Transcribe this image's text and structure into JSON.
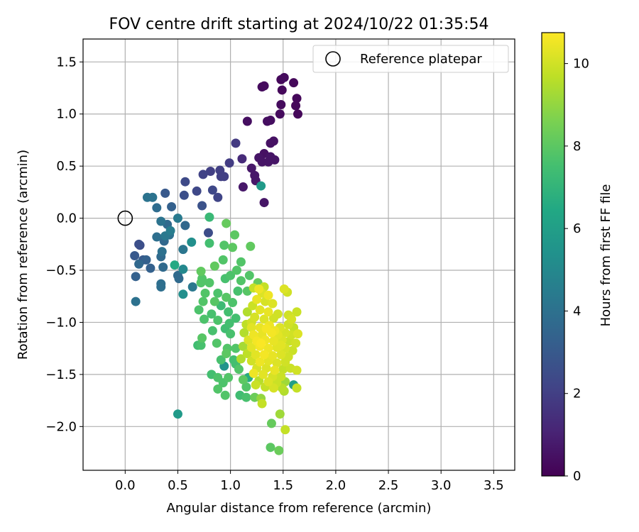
{
  "chart_data": {
    "type": "scatter",
    "title": "FOV centre drift starting at 2024/10/22 01:35:54",
    "xlabel": "Angular distance from reference (arcmin)",
    "ylabel": "Rotation from reference (arcmin)",
    "xlim": [
      -0.4,
      3.7
    ],
    "ylim": [
      -2.42,
      1.72
    ],
    "xticks": [
      0.0,
      0.5,
      1.0,
      1.5,
      2.0,
      2.5,
      3.0,
      3.5
    ],
    "xtick_labels": [
      "0.0",
      "0.5",
      "1.0",
      "1.5",
      "2.0",
      "2.5",
      "3.0",
      "3.5"
    ],
    "yticks": [
      1.5,
      1.0,
      0.5,
      0.0,
      -0.5,
      -1.0,
      -1.5,
      -2.0
    ],
    "ytick_labels": [
      "1.5",
      "1.0",
      "0.5",
      "0.0",
      "−0.5",
      "−1.0",
      "−1.5",
      "−2.0"
    ],
    "grid": true,
    "legend": {
      "position": "top-right",
      "entries": [
        "Reference platepar"
      ]
    },
    "reference_point": {
      "x": 0.0,
      "y": 0.0
    },
    "colorbar": {
      "label": "Hours from first FF file",
      "range": [
        0,
        10.75
      ],
      "ticks": [
        0,
        2,
        4,
        6,
        8,
        10
      ],
      "tick_labels": [
        "0",
        "2",
        "4",
        "6",
        "8",
        "10"
      ],
      "colormap": "viridis"
    },
    "points_description": "x, y in arcmin; c in hours",
    "points": [
      {
        "x": 1.48,
        "y": 1.33,
        "c": 0.2
      },
      {
        "x": 1.51,
        "y": 1.35,
        "c": 0.3
      },
      {
        "x": 1.6,
        "y": 1.3,
        "c": 0.2
      },
      {
        "x": 1.3,
        "y": 1.26,
        "c": 0.3
      },
      {
        "x": 1.32,
        "y": 1.27,
        "c": 0.3
      },
      {
        "x": 1.49,
        "y": 1.23,
        "c": 0.2
      },
      {
        "x": 1.63,
        "y": 1.15,
        "c": 0.2
      },
      {
        "x": 1.48,
        "y": 1.09,
        "c": 0.3
      },
      {
        "x": 1.62,
        "y": 1.08,
        "c": 0.2
      },
      {
        "x": 1.64,
        "y": 1.0,
        "c": 0.2
      },
      {
        "x": 1.47,
        "y": 1.0,
        "c": 0.3
      },
      {
        "x": 1.16,
        "y": 0.93,
        "c": 0.4
      },
      {
        "x": 1.35,
        "y": 0.93,
        "c": 0.4
      },
      {
        "x": 1.38,
        "y": 0.94,
        "c": 0.4
      },
      {
        "x": 1.41,
        "y": 0.74,
        "c": 0.5
      },
      {
        "x": 1.38,
        "y": 0.72,
        "c": 0.5
      },
      {
        "x": 1.32,
        "y": 0.62,
        "c": 0.5
      },
      {
        "x": 1.38,
        "y": 0.59,
        "c": 0.6
      },
      {
        "x": 1.27,
        "y": 0.58,
        "c": 0.6
      },
      {
        "x": 1.42,
        "y": 0.56,
        "c": 0.6
      },
      {
        "x": 1.3,
        "y": 0.54,
        "c": 0.6
      },
      {
        "x": 1.36,
        "y": 0.54,
        "c": 0.6
      },
      {
        "x": 1.2,
        "y": 0.48,
        "c": 0.7
      },
      {
        "x": 1.23,
        "y": 0.41,
        "c": 0.7
      },
      {
        "x": 1.24,
        "y": 0.36,
        "c": 0.7
      },
      {
        "x": 1.12,
        "y": 0.3,
        "c": 0.7
      },
      {
        "x": 1.32,
        "y": 0.15,
        "c": 0.6
      },
      {
        "x": 1.11,
        "y": 0.57,
        "c": 1.3
      },
      {
        "x": 1.05,
        "y": 0.72,
        "c": 1.8
      },
      {
        "x": 0.99,
        "y": 0.53,
        "c": 1.9
      },
      {
        "x": 0.9,
        "y": 0.46,
        "c": 2.0
      },
      {
        "x": 0.81,
        "y": 0.45,
        "c": 2.0
      },
      {
        "x": 0.74,
        "y": 0.42,
        "c": 2.1
      },
      {
        "x": 0.94,
        "y": 0.4,
        "c": 2.0
      },
      {
        "x": 0.91,
        "y": 0.4,
        "c": 2.0
      },
      {
        "x": 0.57,
        "y": 0.35,
        "c": 2.4
      },
      {
        "x": 0.83,
        "y": 0.27,
        "c": 2.3
      },
      {
        "x": 0.68,
        "y": 0.26,
        "c": 2.3
      },
      {
        "x": 0.88,
        "y": 0.2,
        "c": 2.2
      },
      {
        "x": 0.56,
        "y": 0.22,
        "c": 2.6
      },
      {
        "x": 0.38,
        "y": 0.24,
        "c": 3.0
      },
      {
        "x": 0.73,
        "y": 0.12,
        "c": 2.7
      },
      {
        "x": 0.44,
        "y": 0.11,
        "c": 3.3
      },
      {
        "x": 0.21,
        "y": 0.2,
        "c": 4.1
      },
      {
        "x": 0.26,
        "y": 0.2,
        "c": 4.1
      },
      {
        "x": 0.3,
        "y": 0.1,
        "c": 3.8
      },
      {
        "x": 0.34,
        "y": -0.03,
        "c": 4.1
      },
      {
        "x": 0.4,
        "y": -0.06,
        "c": 3.7
      },
      {
        "x": 0.5,
        "y": 0.0,
        "c": 4.4
      },
      {
        "x": 0.57,
        "y": -0.07,
        "c": 3.6
      },
      {
        "x": 0.43,
        "y": -0.12,
        "c": 4.5
      },
      {
        "x": 0.42,
        "y": -0.16,
        "c": 4.0
      },
      {
        "x": 0.3,
        "y": -0.18,
        "c": 3.9
      },
      {
        "x": 0.38,
        "y": -0.17,
        "c": 4.3
      },
      {
        "x": 0.37,
        "y": -0.22,
        "c": 3.6
      },
      {
        "x": 0.13,
        "y": -0.25,
        "c": 2.6
      },
      {
        "x": 0.14,
        "y": -0.26,
        "c": 2.5
      },
      {
        "x": 0.63,
        "y": -0.23,
        "c": 5.3
      },
      {
        "x": 0.55,
        "y": -0.3,
        "c": 4.2
      },
      {
        "x": 0.35,
        "y": -0.32,
        "c": 4.0
      },
      {
        "x": 0.09,
        "y": -0.36,
        "c": 3.0
      },
      {
        "x": 0.17,
        "y": -0.4,
        "c": 3.0
      },
      {
        "x": 0.2,
        "y": -0.4,
        "c": 3.3
      },
      {
        "x": 0.34,
        "y": -0.37,
        "c": 3.7
      },
      {
        "x": 0.13,
        "y": -0.44,
        "c": 3.6
      },
      {
        "x": 0.24,
        "y": -0.48,
        "c": 3.3
      },
      {
        "x": 0.36,
        "y": -0.47,
        "c": 3.7
      },
      {
        "x": 0.1,
        "y": -0.56,
        "c": 3.3
      },
      {
        "x": 0.5,
        "y": -0.55,
        "c": 3.7
      },
      {
        "x": 0.51,
        "y": -0.58,
        "c": 3.7
      },
      {
        "x": 0.34,
        "y": -0.63,
        "c": 3.9
      },
      {
        "x": 0.34,
        "y": -0.66,
        "c": 3.9
      },
      {
        "x": 0.64,
        "y": -0.66,
        "c": 4.3
      },
      {
        "x": 0.55,
        "y": -0.73,
        "c": 5.3
      },
      {
        "x": 0.1,
        "y": -0.8,
        "c": 4.0
      },
      {
        "x": 0.47,
        "y": -0.45,
        "c": 6.5
      },
      {
        "x": 0.55,
        "y": -0.49,
        "c": 5.0
      },
      {
        "x": 0.8,
        "y": 0.01,
        "c": 7.2
      },
      {
        "x": 0.79,
        "y": -0.14,
        "c": 2.5
      },
      {
        "x": 0.8,
        "y": -0.24,
        "c": 7.5
      },
      {
        "x": 1.29,
        "y": 0.31,
        "c": 5.8
      },
      {
        "x": 0.96,
        "y": -0.05,
        "c": 8.2
      },
      {
        "x": 1.04,
        "y": -0.16,
        "c": 8.0
      },
      {
        "x": 0.94,
        "y": -0.26,
        "c": 7.8
      },
      {
        "x": 1.02,
        "y": -0.28,
        "c": 8.0
      },
      {
        "x": 1.19,
        "y": -0.27,
        "c": 8.1
      },
      {
        "x": 0.85,
        "y": -0.46,
        "c": 8.1
      },
      {
        "x": 0.93,
        "y": -0.4,
        "c": 7.8
      },
      {
        "x": 1.1,
        "y": -0.42,
        "c": 7.8
      },
      {
        "x": 1.06,
        "y": -0.5,
        "c": 7.8
      },
      {
        "x": 1.0,
        "y": -0.55,
        "c": 7.7
      },
      {
        "x": 0.72,
        "y": -0.51,
        "c": 8.1
      },
      {
        "x": 0.73,
        "y": -0.58,
        "c": 7.8
      },
      {
        "x": 0.72,
        "y": -0.62,
        "c": 7.8
      },
      {
        "x": 0.8,
        "y": -0.62,
        "c": 7.8
      },
      {
        "x": 0.95,
        "y": -0.58,
        "c": 7.6
      },
      {
        "x": 1.1,
        "y": -0.6,
        "c": 7.8
      },
      {
        "x": 1.18,
        "y": -0.55,
        "c": 7.8
      },
      {
        "x": 1.26,
        "y": -0.62,
        "c": 8.2
      },
      {
        "x": 1.16,
        "y": -0.7,
        "c": 7.9
      },
      {
        "x": 1.07,
        "y": -0.7,
        "c": 7.6
      },
      {
        "x": 0.88,
        "y": -0.72,
        "c": 7.7
      },
      {
        "x": 0.76,
        "y": -0.72,
        "c": 7.8
      },
      {
        "x": 0.74,
        "y": -0.8,
        "c": 7.8
      },
      {
        "x": 0.96,
        "y": -0.76,
        "c": 7.9
      },
      {
        "x": 1.02,
        "y": -0.81,
        "c": 7.7
      },
      {
        "x": 0.85,
        "y": -0.8,
        "c": 7.9
      },
      {
        "x": 0.91,
        "y": -0.84,
        "c": 7.3
      },
      {
        "x": 0.7,
        "y": -0.88,
        "c": 7.7
      },
      {
        "x": 0.82,
        "y": -0.92,
        "c": 7.6
      },
      {
        "x": 0.98,
        "y": -0.9,
        "c": 7.5
      },
      {
        "x": 1.05,
        "y": -0.96,
        "c": 7.5
      },
      {
        "x": 0.75,
        "y": -0.97,
        "c": 7.7
      },
      {
        "x": 0.88,
        "y": -0.98,
        "c": 7.7
      },
      {
        "x": 0.99,
        "y": -1.01,
        "c": 7.5
      },
      {
        "x": 0.95,
        "y": -1.06,
        "c": 7.4
      },
      {
        "x": 0.83,
        "y": -1.08,
        "c": 7.6
      },
      {
        "x": 1.0,
        "y": -1.11,
        "c": 7.6
      },
      {
        "x": 0.73,
        "y": -1.15,
        "c": 7.9
      },
      {
        "x": 0.87,
        "y": -1.2,
        "c": 7.8
      },
      {
        "x": 0.69,
        "y": -1.22,
        "c": 7.4
      },
      {
        "x": 0.72,
        "y": -1.22,
        "c": 7.6
      },
      {
        "x": 0.97,
        "y": -1.25,
        "c": 7.8
      },
      {
        "x": 1.05,
        "y": -1.25,
        "c": 7.8
      },
      {
        "x": 0.96,
        "y": -1.3,
        "c": 8.0
      },
      {
        "x": 0.91,
        "y": -1.36,
        "c": 7.6
      },
      {
        "x": 1.03,
        "y": -1.36,
        "c": 7.5
      },
      {
        "x": 0.94,
        "y": -1.42,
        "c": 5.5
      },
      {
        "x": 1.05,
        "y": -1.4,
        "c": 7.5
      },
      {
        "x": 1.08,
        "y": -1.45,
        "c": 7.8
      },
      {
        "x": 0.82,
        "y": -1.5,
        "c": 7.5
      },
      {
        "x": 0.88,
        "y": -1.53,
        "c": 7.7
      },
      {
        "x": 0.98,
        "y": -1.53,
        "c": 7.8
      },
      {
        "x": 1.12,
        "y": -1.55,
        "c": 8.0
      },
      {
        "x": 0.93,
        "y": -1.58,
        "c": 7.7
      },
      {
        "x": 1.17,
        "y": -1.53,
        "c": 6.6
      },
      {
        "x": 1.15,
        "y": -1.62,
        "c": 7.8
      },
      {
        "x": 0.88,
        "y": -1.64,
        "c": 7.8
      },
      {
        "x": 1.09,
        "y": -1.7,
        "c": 7.4
      },
      {
        "x": 0.95,
        "y": -1.7,
        "c": 7.8
      },
      {
        "x": 1.15,
        "y": -1.72,
        "c": 7.6
      },
      {
        "x": 1.23,
        "y": -1.72,
        "c": 8.3
      },
      {
        "x": 1.29,
        "y": -1.73,
        "c": 9.0
      },
      {
        "x": 1.3,
        "y": -1.78,
        "c": 9.8
      },
      {
        "x": 0.5,
        "y": -1.88,
        "c": 5.8
      },
      {
        "x": 1.39,
        "y": -1.97,
        "c": 8.2
      },
      {
        "x": 1.52,
        "y": -2.03,
        "c": 9.8
      },
      {
        "x": 1.38,
        "y": -2.2,
        "c": 8.0
      },
      {
        "x": 1.46,
        "y": -2.23,
        "c": 8.3
      },
      {
        "x": 1.47,
        "y": -1.88,
        "c": 9.2
      },
      {
        "x": 1.51,
        "y": -0.68,
        "c": 10.2
      },
      {
        "x": 1.54,
        "y": -0.71,
        "c": 10.0
      },
      {
        "x": 1.22,
        "y": -0.67,
        "c": 9.8
      },
      {
        "x": 1.27,
        "y": -0.68,
        "c": 10.5
      },
      {
        "x": 1.32,
        "y": -0.66,
        "c": 9.8
      },
      {
        "x": 1.3,
        "y": -0.72,
        "c": 10.2
      },
      {
        "x": 1.36,
        "y": -0.74,
        "c": 10.5
      },
      {
        "x": 1.25,
        "y": -0.78,
        "c": 10.4
      },
      {
        "x": 1.33,
        "y": -0.8,
        "c": 10.1
      },
      {
        "x": 1.4,
        "y": -0.82,
        "c": 10.2
      },
      {
        "x": 1.21,
        "y": -0.84,
        "c": 9.9
      },
      {
        "x": 1.28,
        "y": -0.88,
        "c": 10.3
      },
      {
        "x": 1.36,
        "y": -0.9,
        "c": 10.4
      },
      {
        "x": 1.45,
        "y": -0.92,
        "c": 10.0
      },
      {
        "x": 1.16,
        "y": -0.9,
        "c": 9.5
      },
      {
        "x": 1.23,
        "y": -0.95,
        "c": 10.1
      },
      {
        "x": 1.32,
        "y": -0.97,
        "c": 10.2
      },
      {
        "x": 1.41,
        "y": -0.96,
        "c": 10.0
      },
      {
        "x": 1.55,
        "y": -0.93,
        "c": 10.0
      },
      {
        "x": 1.63,
        "y": -0.9,
        "c": 9.9
      },
      {
        "x": 1.58,
        "y": -0.97,
        "c": 10.1
      },
      {
        "x": 1.15,
        "y": -1.02,
        "c": 9.7
      },
      {
        "x": 1.2,
        "y": -1.05,
        "c": 10.3
      },
      {
        "x": 1.28,
        "y": -1.05,
        "c": 10.4
      },
      {
        "x": 1.37,
        "y": -1.03,
        "c": 10.5
      },
      {
        "x": 1.47,
        "y": -1.05,
        "c": 10.2
      },
      {
        "x": 1.55,
        "y": -1.02,
        "c": 10.0
      },
      {
        "x": 1.6,
        "y": -1.05,
        "c": 9.8
      },
      {
        "x": 1.13,
        "y": -1.1,
        "c": 9.5
      },
      {
        "x": 1.22,
        "y": -1.12,
        "c": 10.5
      },
      {
        "x": 1.3,
        "y": -1.12,
        "c": 10.4
      },
      {
        "x": 1.39,
        "y": -1.1,
        "c": 10.6
      },
      {
        "x": 1.45,
        "y": -1.12,
        "c": 10.3
      },
      {
        "x": 1.52,
        "y": -1.1,
        "c": 10.1
      },
      {
        "x": 1.58,
        "y": -1.12,
        "c": 10.0
      },
      {
        "x": 1.64,
        "y": -1.11,
        "c": 10.2
      },
      {
        "x": 1.17,
        "y": -1.17,
        "c": 10.2
      },
      {
        "x": 1.25,
        "y": -1.18,
        "c": 10.6
      },
      {
        "x": 1.33,
        "y": -1.17,
        "c": 10.5
      },
      {
        "x": 1.41,
        "y": -1.18,
        "c": 10.4
      },
      {
        "x": 1.49,
        "y": -1.17,
        "c": 10.2
      },
      {
        "x": 1.56,
        "y": -1.18,
        "c": 9.9
      },
      {
        "x": 1.62,
        "y": -1.2,
        "c": 10.0
      },
      {
        "x": 1.12,
        "y": -1.23,
        "c": 9.3
      },
      {
        "x": 1.2,
        "y": -1.24,
        "c": 10.3
      },
      {
        "x": 1.28,
        "y": -1.23,
        "c": 10.6
      },
      {
        "x": 1.36,
        "y": -1.25,
        "c": 10.5
      },
      {
        "x": 1.44,
        "y": -1.24,
        "c": 10.3
      },
      {
        "x": 1.52,
        "y": -1.25,
        "c": 10.1
      },
      {
        "x": 1.59,
        "y": -1.27,
        "c": 9.9
      },
      {
        "x": 1.16,
        "y": -1.3,
        "c": 9.7
      },
      {
        "x": 1.24,
        "y": -1.31,
        "c": 10.3
      },
      {
        "x": 1.32,
        "y": -1.31,
        "c": 10.6
      },
      {
        "x": 1.4,
        "y": -1.32,
        "c": 10.4
      },
      {
        "x": 1.48,
        "y": -1.31,
        "c": 10.2
      },
      {
        "x": 1.55,
        "y": -1.33,
        "c": 10.0
      },
      {
        "x": 1.1,
        "y": -1.35,
        "c": 9.5
      },
      {
        "x": 1.2,
        "y": -1.37,
        "c": 10.0
      },
      {
        "x": 1.28,
        "y": -1.38,
        "c": 10.5
      },
      {
        "x": 1.36,
        "y": -1.37,
        "c": 10.3
      },
      {
        "x": 1.44,
        "y": -1.39,
        "c": 10.2
      },
      {
        "x": 1.52,
        "y": -1.38,
        "c": 10.0
      },
      {
        "x": 1.25,
        "y": -1.44,
        "c": 10.1
      },
      {
        "x": 1.34,
        "y": -1.44,
        "c": 10.2
      },
      {
        "x": 1.42,
        "y": -1.46,
        "c": 10.4
      },
      {
        "x": 1.5,
        "y": -1.45,
        "c": 9.8
      },
      {
        "x": 1.57,
        "y": -1.44,
        "c": 9.9
      },
      {
        "x": 1.63,
        "y": -1.46,
        "c": 10.0
      },
      {
        "x": 1.22,
        "y": -1.49,
        "c": 10.5
      },
      {
        "x": 1.31,
        "y": -1.5,
        "c": 10.3
      },
      {
        "x": 1.4,
        "y": -1.52,
        "c": 10.1
      },
      {
        "x": 1.48,
        "y": -1.52,
        "c": 9.9
      },
      {
        "x": 1.27,
        "y": -1.56,
        "c": 9.6
      },
      {
        "x": 1.36,
        "y": -1.57,
        "c": 10.2
      },
      {
        "x": 1.44,
        "y": -1.58,
        "c": 9.9
      },
      {
        "x": 1.52,
        "y": -1.57,
        "c": 9.2
      },
      {
        "x": 1.6,
        "y": -1.6,
        "c": 6.0
      },
      {
        "x": 1.24,
        "y": -1.6,
        "c": 9.9
      },
      {
        "x": 1.33,
        "y": -1.62,
        "c": 9.8
      },
      {
        "x": 1.41,
        "y": -1.63,
        "c": 10.1
      },
      {
        "x": 1.49,
        "y": -1.63,
        "c": 9.6
      },
      {
        "x": 1.63,
        "y": -1.63,
        "c": 9.8
      },
      {
        "x": 1.51,
        "y": -1.66,
        "c": 9.5
      },
      {
        "x": 1.2,
        "y": -1.0,
        "c": 10.0
      },
      {
        "x": 1.34,
        "y": -1.06,
        "c": 10.6
      },
      {
        "x": 1.42,
        "y": -1.08,
        "c": 10.5
      },
      {
        "x": 1.48,
        "y": -1.22,
        "c": 10.3
      },
      {
        "x": 1.29,
        "y": -1.2,
        "c": 10.7
      }
    ]
  }
}
